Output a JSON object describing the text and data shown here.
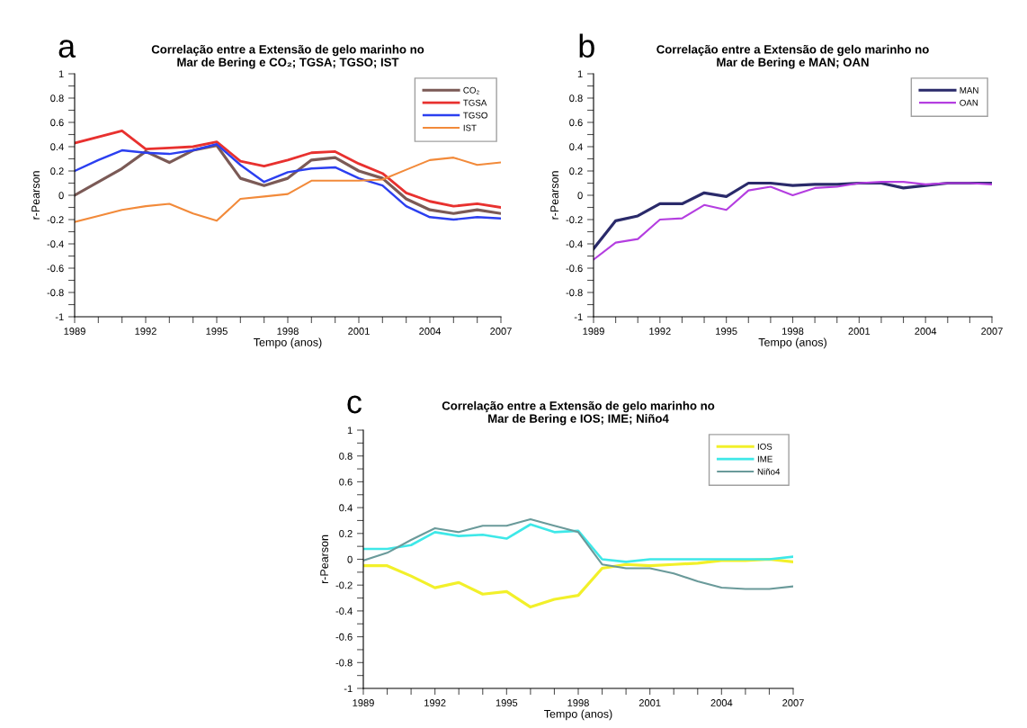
{
  "chart_data": [
    {
      "type": "line",
      "title": "Correlação entre a Extensão de gelo marinho no\nMar de Bering e CO₂; TGSA; TGSO; IST",
      "xlabel": "Tempo (anos)",
      "ylabel": "r-Pearson",
      "annotations": [
        "a"
      ],
      "legend": "top right",
      "grid": false,
      "xlim": [
        1989,
        2007
      ],
      "xticks": [
        1989,
        {
          "value": 1990,
          "label": null
        },
        {
          "value": 1991,
          "label": null
        },
        1992,
        {
          "value": 1993,
          "label": null
        },
        {
          "value": 1994,
          "label": null
        },
        1995,
        {
          "value": 1996,
          "label": null
        },
        {
          "value": 1997,
          "label": null
        },
        1998,
        {
          "value": 1999,
          "label": null
        },
        {
          "value": 2000,
          "label": null
        },
        2001,
        {
          "value": 2002,
          "label": null
        },
        {
          "value": 2003,
          "label": null
        },
        2004,
        {
          "value": 2005,
          "label": null
        },
        {
          "value": 2006,
          "label": null
        },
        2007
      ],
      "ylim": [
        -1,
        1
      ],
      "yticks": [
        -1,
        {
          "value": -0.9,
          "label": null
        },
        -0.8,
        {
          "value": -0.7,
          "label": null
        },
        -0.6,
        {
          "value": -0.5,
          "label": null
        },
        -0.4,
        {
          "value": -0.3,
          "label": null
        },
        -0.2,
        {
          "value": -0.1,
          "label": null
        },
        0,
        {
          "value": 0.1,
          "label": null
        },
        0.2,
        {
          "value": 0.3,
          "label": null
        },
        0.4,
        {
          "value": 0.5,
          "label": null
        },
        0.6,
        {
          "value": 0.7,
          "label": null
        },
        0.8,
        {
          "value": 0.9,
          "label": null
        },
        1
      ],
      "series": [
        {
          "name": "CO₂",
          "color": "#7b5a56",
          "x": [
            1989,
            1991,
            1992,
            1993,
            1994,
            1995,
            1996,
            1997,
            1998,
            1999,
            2000,
            2001,
            2002,
            2003,
            2004,
            2005,
            2006,
            2007
          ],
          "values": [
            0,
            0.22,
            0.36,
            0.27,
            0.37,
            0.41,
            0.14,
            0.08,
            0.14,
            0.29,
            0.31,
            0.2,
            0.14,
            -0.03,
            -0.12,
            -0.15,
            -0.12,
            -0.15
          ]
        },
        {
          "name": "TGSA",
          "color": "#e8312f",
          "x": [
            1989,
            1991,
            1992,
            1993,
            1994,
            1995,
            1996,
            1997,
            1998,
            1999,
            2000,
            2001,
            2002,
            2003,
            2004,
            2005,
            2006,
            2007
          ],
          "values": [
            0.43,
            0.53,
            0.38,
            0.39,
            0.4,
            0.44,
            0.28,
            0.24,
            0.29,
            0.35,
            0.36,
            0.26,
            0.18,
            0.02,
            -0.05,
            -0.09,
            -0.07,
            -0.1
          ]
        },
        {
          "name": "TGSO",
          "color": "#2b3ff0",
          "x": [
            1989,
            1990,
            1991,
            1992,
            1993,
            1994,
            1995,
            1996,
            1997,
            1998,
            1999,
            2000,
            2001,
            2002,
            2003,
            2004,
            2005,
            2006,
            2007
          ],
          "values": [
            0.2,
            0.29,
            0.37,
            0.35,
            0.34,
            0.37,
            0.42,
            0.25,
            0.11,
            0.19,
            0.22,
            0.23,
            0.14,
            0.08,
            -0.09,
            -0.18,
            -0.2,
            -0.18,
            -0.19
          ]
        },
        {
          "name": "IST",
          "color": "#f28a3a",
          "x": [
            1989,
            1990,
            1991,
            1992,
            1993,
            1994,
            1995,
            1996,
            1997,
            1998,
            1999,
            2000,
            2001,
            2002,
            2003,
            2004,
            2005,
            2006,
            2007
          ],
          "values": [
            -0.22,
            -0.17,
            -0.12,
            -0.09,
            -0.07,
            -0.15,
            -0.21,
            -0.03,
            -0.01,
            0.01,
            0.12,
            0.12,
            0.12,
            0.13,
            0.21,
            0.29,
            0.31,
            0.25,
            0.27
          ]
        }
      ]
    },
    {
      "type": "line",
      "title": "Correlação entre a Extensão de gelo marinho no\nMar de Bering e MAN; OAN",
      "xlabel": "Tempo (anos)",
      "ylabel": "r-Pearson",
      "annotations": [
        "b"
      ],
      "legend": "top right",
      "grid": false,
      "xlim": [
        1989,
        2007
      ],
      "xticks": [
        1989,
        {
          "value": 1990,
          "label": null
        },
        {
          "value": 1991,
          "label": null
        },
        1992,
        {
          "value": 1993,
          "label": null
        },
        {
          "value": 1994,
          "label": null
        },
        1995,
        {
          "value": 1996,
          "label": null
        },
        {
          "value": 1997,
          "label": null
        },
        1998,
        {
          "value": 1999,
          "label": null
        },
        {
          "value": 2000,
          "label": null
        },
        2001,
        {
          "value": 2002,
          "label": null
        },
        {
          "value": 2003,
          "label": null
        },
        2004,
        {
          "value": 2005,
          "label": null
        },
        {
          "value": 2006,
          "label": null
        },
        2007
      ],
      "ylim": [
        -1,
        1
      ],
      "yticks": [
        -1,
        {
          "value": -0.9,
          "label": null
        },
        -0.8,
        {
          "value": -0.7,
          "label": null
        },
        -0.6,
        {
          "value": -0.5,
          "label": null
        },
        -0.4,
        {
          "value": -0.3,
          "label": null
        },
        -0.2,
        {
          "value": -0.1,
          "label": null
        },
        0,
        {
          "value": 0.1,
          "label": null
        },
        0.2,
        {
          "value": 0.3,
          "label": null
        },
        0.4,
        {
          "value": 0.5,
          "label": null
        },
        0.6,
        {
          "value": 0.7,
          "label": null
        },
        0.8,
        {
          "value": 0.9,
          "label": null
        },
        1
      ],
      "x": [
        1989,
        1990,
        1991,
        1992,
        1993,
        1994,
        1995,
        1996,
        1997,
        1998,
        1999,
        2000,
        2001,
        2002,
        2003,
        2004,
        2005,
        2006,
        2007
      ],
      "series": [
        {
          "name": "MAN",
          "color": "#2a2a6a",
          "values": [
            -0.44,
            -0.21,
            -0.17,
            -0.07,
            -0.07,
            0.02,
            -0.01,
            0.1,
            0.1,
            0.08,
            0.09,
            0.09,
            0.1,
            0.1,
            0.06,
            0.08,
            0.1,
            0.1,
            0.1
          ]
        },
        {
          "name": "OAN",
          "color": "#b43ee0",
          "values": [
            -0.53,
            -0.39,
            -0.36,
            -0.2,
            -0.19,
            -0.08,
            -0.12,
            0.04,
            0.07,
            0.0,
            0.06,
            0.07,
            0.1,
            0.11,
            0.11,
            0.09,
            0.1,
            0.1,
            0.09
          ]
        }
      ]
    },
    {
      "type": "line",
      "title": "Correlação entre a Extensão de gelo marinho no\nMar de Bering e IOS; IME; Niño4",
      "xlabel": "Tempo (anos)",
      "ylabel": "r-Pearson",
      "annotations": [
        "c"
      ],
      "legend": "top right",
      "grid": false,
      "xlim": [
        1989,
        2007
      ],
      "xticks": [
        1989,
        {
          "value": 1990,
          "label": null
        },
        {
          "value": 1991,
          "label": null
        },
        1992,
        {
          "value": 1993,
          "label": null
        },
        {
          "value": 1994,
          "label": null
        },
        1995,
        {
          "value": 1996,
          "label": null
        },
        {
          "value": 1997,
          "label": null
        },
        1998,
        {
          "value": 1999,
          "label": null
        },
        {
          "value": 2000,
          "label": null
        },
        2001,
        {
          "value": 2002,
          "label": null
        },
        {
          "value": 2003,
          "label": null
        },
        2004,
        {
          "value": 2005,
          "label": null
        },
        {
          "value": 2006,
          "label": null
        },
        2007
      ],
      "ylim": [
        -1,
        1
      ],
      "yticks": [
        -1,
        {
          "value": -0.9,
          "label": null
        },
        -0.8,
        {
          "value": -0.7,
          "label": null
        },
        -0.6,
        {
          "value": -0.5,
          "label": null
        },
        -0.4,
        {
          "value": -0.3,
          "label": null
        },
        -0.2,
        {
          "value": -0.1,
          "label": null
        },
        0,
        {
          "value": 0.1,
          "label": null
        },
        0.2,
        {
          "value": 0.3,
          "label": null
        },
        0.4,
        {
          "value": 0.5,
          "label": null
        },
        0.6,
        {
          "value": 0.7,
          "label": null
        },
        0.8,
        {
          "value": 0.9,
          "label": null
        },
        1
      ],
      "x": [
        1989,
        1990,
        1991,
        1992,
        1993,
        1994,
        1995,
        1996,
        1997,
        1998,
        1999,
        2000,
        2001,
        2002,
        2003,
        2004,
        2005,
        2006,
        2007
      ],
      "series": [
        {
          "name": "IOS",
          "color": "#f2f02a",
          "values": [
            -0.05,
            -0.05,
            -0.13,
            -0.22,
            -0.18,
            -0.27,
            -0.25,
            -0.37,
            -0.31,
            -0.28,
            -0.07,
            -0.04,
            -0.05,
            -0.04,
            -0.03,
            -0.01,
            -0.01,
            0,
            -0.02
          ]
        },
        {
          "name": "IME",
          "color": "#3ee8e8",
          "values": [
            0.08,
            0.08,
            0.11,
            0.21,
            0.18,
            0.19,
            0.16,
            0.27,
            0.21,
            0.22,
            0.0,
            -0.02,
            0.0,
            0.0,
            0.0,
            0.0,
            0.0,
            0.0,
            0.02
          ]
        },
        {
          "name": "Niño4",
          "color": "#6a9a9a",
          "values": [
            -0.01,
            0.05,
            0.15,
            0.24,
            0.21,
            0.26,
            0.26,
            0.31,
            0.26,
            0.21,
            -0.04,
            -0.07,
            -0.07,
            -0.11,
            -0.17,
            -0.22,
            -0.23,
            -0.23,
            -0.21
          ]
        }
      ]
    }
  ]
}
